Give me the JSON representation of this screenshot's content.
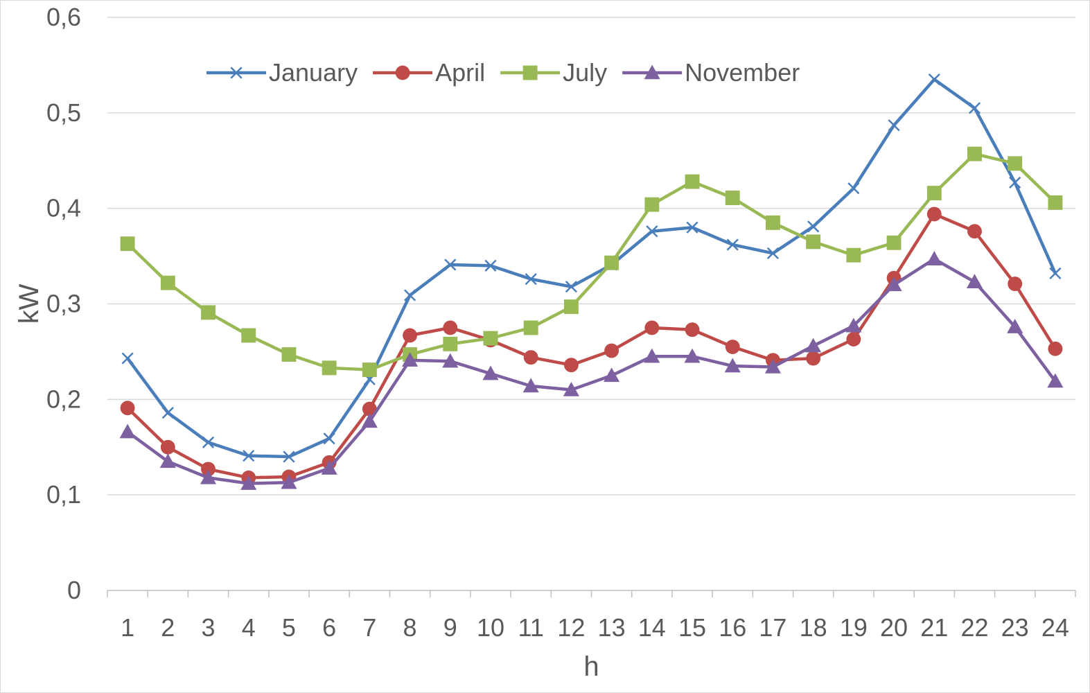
{
  "chart_data": {
    "type": "line",
    "title": "",
    "xlabel": "h",
    "ylabel": "kW",
    "ylim": [
      0,
      0.6
    ],
    "yticks": [
      "0",
      "0,1",
      "0,2",
      "0,3",
      "0,4",
      "0,5",
      "0,6"
    ],
    "grid": true,
    "legend_position": "top",
    "categories": [
      "1",
      "2",
      "3",
      "4",
      "5",
      "6",
      "7",
      "8",
      "9",
      "10",
      "11",
      "12",
      "13",
      "14",
      "15",
      "16",
      "17",
      "18",
      "19",
      "20",
      "21",
      "22",
      "23",
      "24"
    ],
    "series": [
      {
        "name": "January",
        "color": "#4a7ebb",
        "marker": "x",
        "values": [
          0.243,
          0.186,
          0.155,
          0.141,
          0.14,
          0.159,
          0.221,
          0.309,
          0.341,
          0.34,
          0.326,
          0.318,
          0.341,
          0.376,
          0.38,
          0.362,
          0.353,
          0.381,
          0.421,
          0.487,
          0.535,
          0.505,
          0.427,
          0.332
        ]
      },
      {
        "name": "April",
        "color": "#be4b48",
        "marker": "circle",
        "values": [
          0.191,
          0.15,
          0.127,
          0.118,
          0.119,
          0.134,
          0.19,
          0.267,
          0.275,
          0.262,
          0.244,
          0.236,
          0.251,
          0.275,
          0.273,
          0.255,
          0.241,
          0.243,
          0.263,
          0.327,
          0.394,
          0.376,
          0.321,
          0.253
        ]
      },
      {
        "name": "July",
        "color": "#98b954",
        "marker": "square",
        "values": [
          0.363,
          0.322,
          0.291,
          0.267,
          0.247,
          0.233,
          0.231,
          0.247,
          0.258,
          0.264,
          0.275,
          0.297,
          0.343,
          0.404,
          0.428,
          0.411,
          0.385,
          0.365,
          0.351,
          0.364,
          0.416,
          0.457,
          0.447,
          0.406
        ]
      },
      {
        "name": "November",
        "color": "#7d60a0",
        "marker": "triangle",
        "values": [
          0.166,
          0.135,
          0.118,
          0.112,
          0.113,
          0.128,
          0.177,
          0.241,
          0.24,
          0.227,
          0.214,
          0.21,
          0.225,
          0.245,
          0.245,
          0.235,
          0.234,
          0.256,
          0.277,
          0.32,
          0.347,
          0.323,
          0.276,
          0.219
        ]
      }
    ]
  }
}
